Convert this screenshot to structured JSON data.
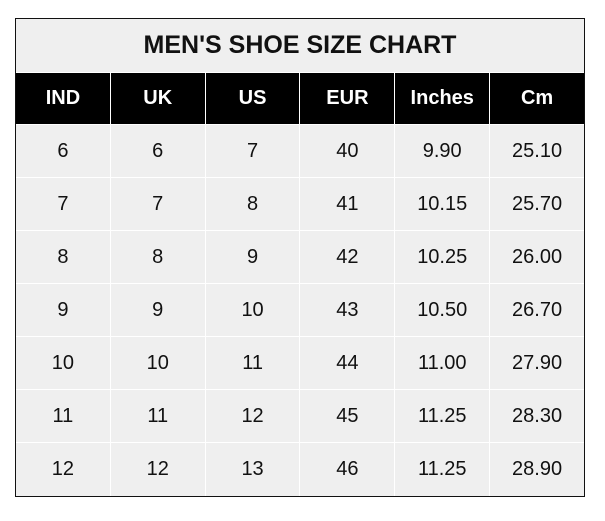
{
  "title": "MEN'S SHOE SIZE CHART",
  "headers": [
    "IND",
    "UK",
    "US",
    "EUR",
    "Inches",
    "Cm"
  ],
  "rows": [
    [
      "6",
      "6",
      "7",
      "40",
      "9.90",
      "25.10"
    ],
    [
      "7",
      "7",
      "8",
      "41",
      "10.15",
      "25.70"
    ],
    [
      "8",
      "8",
      "9",
      "42",
      "10.25",
      "26.00"
    ],
    [
      "9",
      "9",
      "10",
      "43",
      "10.50",
      "26.70"
    ],
    [
      "10",
      "10",
      "11",
      "44",
      "11.00",
      "27.90"
    ],
    [
      "11",
      "11",
      "12",
      "45",
      "11.25",
      "28.30"
    ],
    [
      "12",
      "12",
      "13",
      "46",
      "11.25",
      "28.90"
    ]
  ],
  "colors": {
    "header_bg": "#000000",
    "cell_bg": "#efefef",
    "border": "#111111"
  }
}
